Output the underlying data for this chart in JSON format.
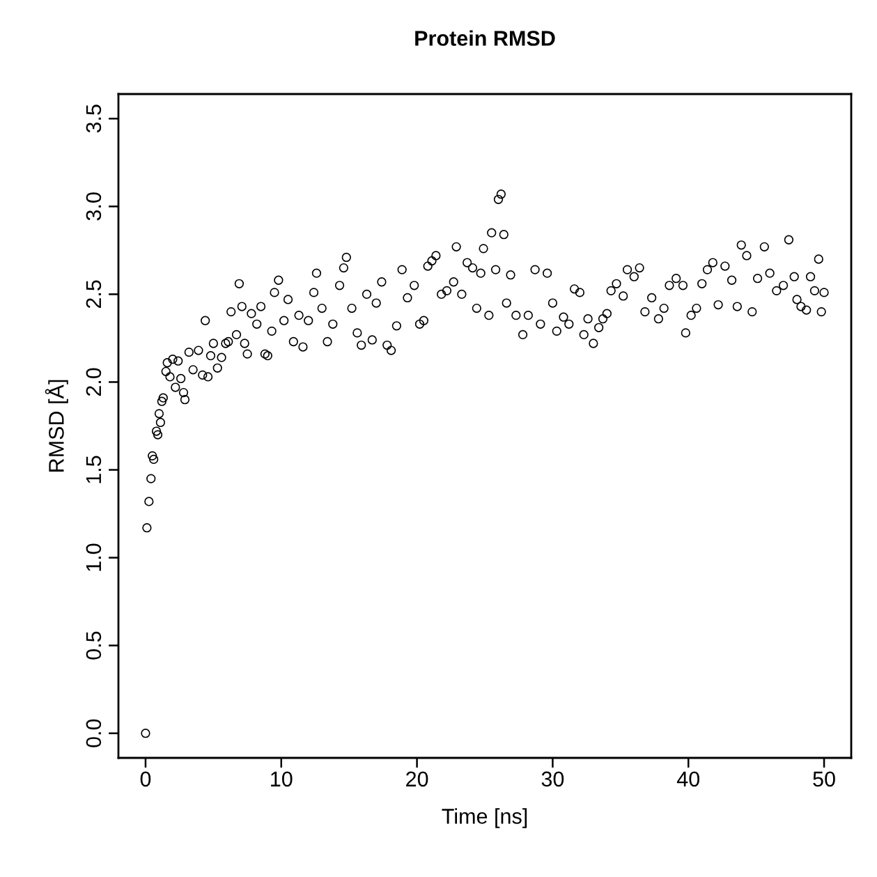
{
  "chart_data": {
    "type": "scatter",
    "title": "Protein RMSD",
    "xlabel": "Time [ns]",
    "ylabel": "RMSD [Å]",
    "x": [
      0,
      0.1,
      0.25,
      0.4,
      0.5,
      0.6,
      0.8,
      0.9,
      1.0,
      1.1,
      1.2,
      1.3,
      1.5,
      1.6,
      1.8,
      2.0,
      2.2,
      2.4,
      2.6,
      2.8,
      2.9,
      3.2,
      3.5,
      3.9,
      4.2,
      4.4,
      4.6,
      4.8,
      5.0,
      5.3,
      5.6,
      5.9,
      6.1,
      6.3,
      6.7,
      6.9,
      7.1,
      7.3,
      7.5,
      7.8,
      8.2,
      8.5,
      8.8,
      9.0,
      9.3,
      9.5,
      9.8,
      10.2,
      10.5,
      10.9,
      11.3,
      11.6,
      12.0,
      12.4,
      12.6,
      13.0,
      13.4,
      13.8,
      14.3,
      14.6,
      14.8,
      15.2,
      15.6,
      15.9,
      16.3,
      16.7,
      17.0,
      17.4,
      17.8,
      18.1,
      18.5,
      18.9,
      19.3,
      19.8,
      20.2,
      20.5,
      20.8,
      21.1,
      21.4,
      21.8,
      22.2,
      22.7,
      22.9,
      23.3,
      23.7,
      24.1,
      24.4,
      24.7,
      24.9,
      25.3,
      25.5,
      25.8,
      26.0,
      26.2,
      26.4,
      26.6,
      26.9,
      27.3,
      27.8,
      28.2,
      28.7,
      29.1,
      29.6,
      30.0,
      30.3,
      30.8,
      31.2,
      31.6,
      32.0,
      32.3,
      32.6,
      33.0,
      33.4,
      33.7,
      34.0,
      34.3,
      34.7,
      35.2,
      35.5,
      36.0,
      36.4,
      36.8,
      37.3,
      37.8,
      38.2,
      38.6,
      39.1,
      39.6,
      39.8,
      40.2,
      40.6,
      41.0,
      41.4,
      41.8,
      42.2,
      42.7,
      43.2,
      43.6,
      43.9,
      44.3,
      44.7,
      45.1,
      45.6,
      46.0,
      46.5,
      47.0,
      47.4,
      47.8,
      48.0,
      48.3,
      48.7,
      49.0,
      49.3,
      49.6,
      49.8,
      50.0
    ],
    "series": [
      {
        "color": "#000000",
        "values": [
          0,
          1.17,
          1.32,
          1.45,
          1.58,
          1.56,
          1.72,
          1.7,
          1.82,
          1.77,
          1.89,
          1.91,
          2.06,
          2.11,
          2.03,
          2.13,
          1.97,
          2.12,
          2.02,
          1.94,
          1.9,
          2.17,
          2.07,
          2.18,
          2.04,
          2.35,
          2.03,
          2.15,
          2.22,
          2.08,
          2.14,
          2.22,
          2.23,
          2.4,
          2.27,
          2.56,
          2.43,
          2.22,
          2.16,
          2.39,
          2.33,
          2.43,
          2.16,
          2.15,
          2.29,
          2.51,
          2.58,
          2.35,
          2.47,
          2.23,
          2.38,
          2.2,
          2.35,
          2.51,
          2.62,
          2.42,
          2.23,
          2.33,
          2.55,
          2.65,
          2.71,
          2.42,
          2.28,
          2.21,
          2.5,
          2.24,
          2.45,
          2.57,
          2.21,
          2.18,
          2.32,
          2.64,
          2.48,
          2.55,
          2.33,
          2.35,
          2.66,
          2.69,
          2.72,
          2.5,
          2.52,
          2.57,
          2.77,
          2.5,
          2.68,
          2.65,
          2.42,
          2.62,
          2.76,
          2.38,
          2.85,
          2.64,
          3.04,
          3.07,
          2.84,
          2.45,
          2.61,
          2.38,
          2.27,
          2.38,
          2.64,
          2.33,
          2.62,
          2.45,
          2.29,
          2.37,
          2.33,
          2.53,
          2.51,
          2.27,
          2.36,
          2.22,
          2.31,
          2.36,
          2.39,
          2.52,
          2.56,
          2.49,
          2.64,
          2.6,
          2.65,
          2.4,
          2.48,
          2.36,
          2.42,
          2.55,
          2.59,
          2.55,
          2.28,
          2.38,
          2.42,
          2.56,
          2.64,
          2.68,
          2.44,
          2.66,
          2.58,
          2.43,
          2.78,
          2.72,
          2.4,
          2.59,
          2.77,
          2.62,
          2.52,
          2.55,
          2.81,
          2.6,
          2.47,
          2.43,
          2.41,
          2.6,
          2.52,
          2.7,
          2.4,
          2.51
        ]
      }
    ],
    "marker": "circle",
    "grid": false,
    "legend": false,
    "xlim": [
      -2,
      52
    ],
    "xticks": [
      0,
      10,
      20,
      30,
      40,
      50
    ],
    "ylim": [
      -0.14,
      3.64
    ],
    "yticks": [
      {
        "value": 0,
        "label": "0.0"
      },
      0.5,
      {
        "value": 1,
        "label": "1.0"
      },
      1.5,
      {
        "value": 2,
        "label": "2.0"
      },
      2.5,
      {
        "value": 3,
        "label": "3.0"
      },
      3.5
    ]
  }
}
